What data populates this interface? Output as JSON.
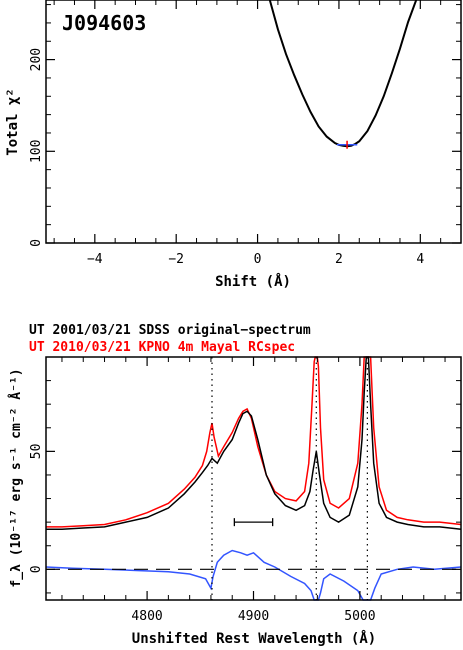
{
  "chart_data": [
    {
      "type": "line",
      "object_label": "J094603",
      "xlabel": "Shift (Å)",
      "ylabel": "Total χ²",
      "xlim": [
        -5.2,
        5.0
      ],
      "ylim": [
        0,
        265
      ],
      "xticks": [
        "−4",
        "−2",
        "0",
        "2",
        "4"
      ],
      "xtick_values": [
        -4,
        -2,
        0,
        2,
        4
      ],
      "yticks": [
        "0",
        "100",
        "200"
      ],
      "ytick_values": [
        0,
        100,
        200
      ],
      "series": [
        {
          "color": "#000000",
          "x": [
            0.3,
            0.5,
            0.7,
            0.9,
            1.1,
            1.3,
            1.5,
            1.7,
            1.9,
            2.0,
            2.1,
            2.2,
            2.3,
            2.4,
            2.5,
            2.7,
            2.9,
            3.1,
            3.3,
            3.5,
            3.7,
            3.9
          ],
          "y": [
            265,
            233,
            206,
            183,
            162,
            143,
            127,
            116,
            109,
            107,
            106,
            105.5,
            106,
            108,
            111,
            122,
            139,
            160,
            185,
            212,
            241,
            268
          ]
        }
      ],
      "minimum_marker": {
        "x": 2.2,
        "y": 105.5,
        "x_range": [
          1.95,
          2.45
        ],
        "line_color": "#3355ff",
        "tick_color": "#ff0000"
      },
      "grid": false
    },
    {
      "type": "line",
      "legend": [
        {
          "label": "UT 2001/03/21 SDSS original−spectrum",
          "color": "#000000"
        },
        {
          "label": "UT 2010/03/21 KPNO 4m Mayal RCspec",
          "color": "#ff0000"
        }
      ],
      "xlabel": "Unshifted Rest Wavelength (Å)",
      "ylabel": "f_λ (10⁻¹⁷ erg s⁻¹ cm⁻² Å⁻¹)",
      "xlim": [
        4705,
        5095
      ],
      "ylim": [
        -13,
        90
      ],
      "xticks": [
        "4800",
        "4900",
        "5000"
      ],
      "xtick_values": [
        4800,
        4900,
        5000
      ],
      "yticks": [
        "0",
        "50"
      ],
      "ytick_values": [
        0,
        50
      ],
      "vertical_dotted_lines_x": [
        4861,
        4959,
        5007
      ],
      "dashed_zero_line": true,
      "error_bar": {
        "x_range": [
          4882,
          4918
        ],
        "y": 20
      },
      "series": [
        {
          "name": "UT 2001/03/21 SDSS original−spectrum",
          "color": "#000000",
          "x": [
            4705,
            4720,
            4740,
            4760,
            4780,
            4800,
            4820,
            4835,
            4845,
            4852,
            4857,
            4861,
            4866,
            4872,
            4880,
            4886,
            4890,
            4894,
            4898,
            4904,
            4912,
            4920,
            4930,
            4940,
            4948,
            4953,
            4956,
            4959,
            4962,
            4966,
            4972,
            4980,
            4990,
            4998,
            5002,
            5004,
            5006,
            5007,
            5008,
            5010,
            5013,
            5018,
            5025,
            5035,
            5045,
            5060,
            5075,
            5095
          ],
          "y": [
            17,
            17,
            17.5,
            18,
            20,
            22,
            26,
            32,
            37,
            41,
            44,
            47,
            45,
            50,
            55,
            62,
            66,
            67,
            65,
            55,
            40,
            32,
            27,
            25,
            27,
            33,
            42,
            50,
            40,
            28,
            22,
            20,
            23,
            35,
            55,
            75,
            90,
            90,
            90,
            70,
            45,
            28,
            22,
            20,
            19,
            18,
            18,
            17
          ]
        },
        {
          "name": "UT 2010/03/21 KPNO 4m Mayal RCspec",
          "color": "#ff0000",
          "x": [
            4705,
            4720,
            4740,
            4760,
            4780,
            4800,
            4820,
            4835,
            4845,
            4852,
            4856,
            4859,
            4861,
            4863,
            4867,
            4872,
            4880,
            4886,
            4890,
            4894,
            4898,
            4904,
            4912,
            4920,
            4930,
            4940,
            4948,
            4952,
            4955,
            4957,
            4958,
            4959,
            4960,
            4961,
            4963,
            4966,
            4972,
            4980,
            4990,
            4998,
            5002,
            5004,
            5006,
            5007,
            5008,
            5010,
            5013,
            5018,
            5025,
            5035,
            5045,
            5060,
            5075,
            5095
          ],
          "y": [
            18,
            18,
            18.5,
            19,
            21,
            24,
            28,
            34,
            39,
            44,
            50,
            58,
            62,
            56,
            48,
            52,
            58,
            64,
            67,
            68,
            64,
            52,
            40,
            33,
            30,
            29,
            33,
            45,
            70,
            88,
            90,
            90,
            90,
            86,
            60,
            38,
            28,
            26,
            30,
            45,
            70,
            90,
            90,
            90,
            90,
            90,
            60,
            35,
            25,
            22,
            21,
            20,
            20,
            19
          ]
        },
        {
          "name": "residual",
          "color": "#3355ff",
          "x": [
            4705,
            4730,
            4760,
            4790,
            4820,
            4840,
            4855,
            4860,
            4862,
            4866,
            4872,
            4880,
            4888,
            4894,
            4900,
            4910,
            4920,
            4935,
            4948,
            4954,
            4957,
            4959,
            4961,
            4963,
            4966,
            4972,
            4985,
            4998,
            5003,
            5006,
            5008,
            5010,
            5014,
            5020,
            5035,
            5050,
            5070,
            5095
          ],
          "y": [
            1,
            0.5,
            0,
            -0.5,
            -1,
            -2,
            -4,
            -8,
            -3,
            3,
            6,
            8,
            7,
            6,
            7,
            3,
            1,
            -3,
            -6,
            -9,
            -13,
            -13,
            -13,
            -10,
            -4,
            -2,
            -5,
            -9,
            -13,
            -13,
            -13,
            -13,
            -8,
            -2,
            0,
            1,
            0,
            1
          ]
        }
      ]
    }
  ]
}
